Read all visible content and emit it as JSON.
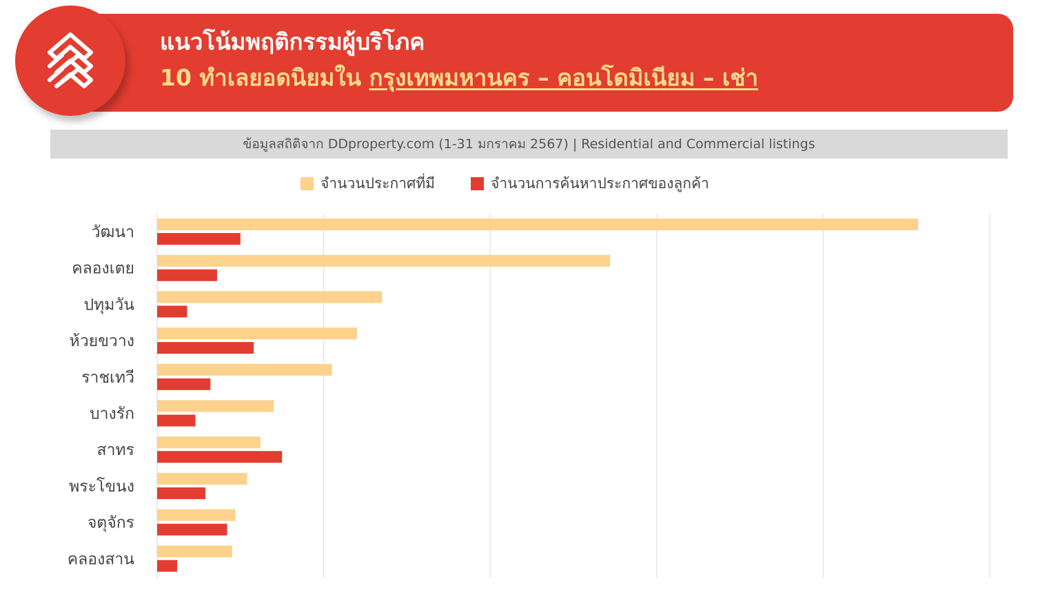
{
  "header": {
    "title_line1": "แนวโน้มพฤติกรรมผู้บริโภค",
    "title_line2_prefix": "10 ทำเลยอดนิยมใน ",
    "title_line2_underlined": "กรุงเทพมหานคร – คอนโดมิเนียม – เช่า"
  },
  "source": "ข้อมูลสถิติจาก DDproperty.com (1-31 มกราคม 2567) | Residential and Commercial listings",
  "logo": {
    "icon": "stacked-chevron-house-icon"
  },
  "colors": {
    "brand_red": "#e23d30",
    "listings": "#fcd28c",
    "searches": "#e23d30",
    "title_highlight": "#fddc8a"
  },
  "chart_data": {
    "type": "bar",
    "orientation": "horizontal",
    "categories": [
      "วัฒนา",
      "คลองเตย",
      "ปทุมวัน",
      "ห้วยขวาง",
      "ราชเทวี",
      "บางรัก",
      "สาทร",
      "พระโขนง",
      "จตุจักร",
      "คลองสาน"
    ],
    "series": [
      {
        "name": "จำนวนประกาศที่มี",
        "values": [
          4.57,
          2.72,
          1.35,
          1.2,
          1.05,
          0.7,
          0.62,
          0.54,
          0.47,
          0.45
        ]
      },
      {
        "name": "จำนวนการค้นหาประกาศของลูกค้า",
        "values": [
          0.5,
          0.36,
          0.18,
          0.58,
          0.32,
          0.23,
          0.75,
          0.29,
          0.42,
          0.12
        ]
      }
    ],
    "xlim": [
      0,
      5
    ],
    "x_gridlines": 5,
    "x_tick_labels_shown": false,
    "grid": true,
    "legend_position": "top"
  }
}
